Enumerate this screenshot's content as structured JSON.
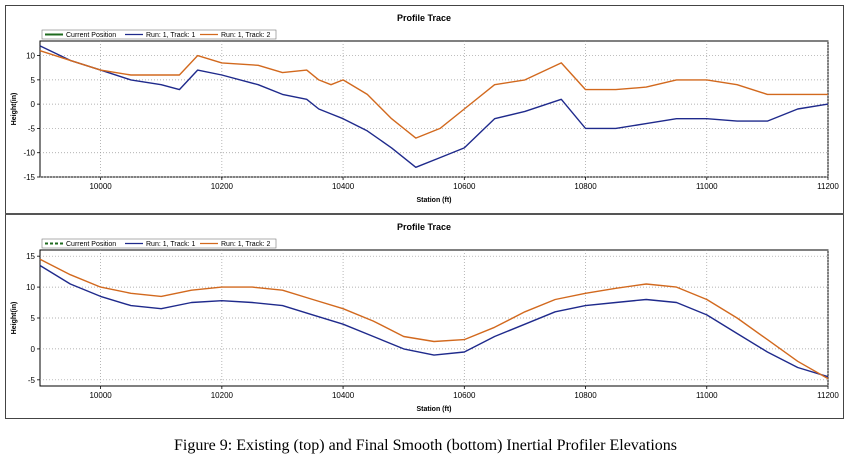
{
  "caption": "Figure 9: Existing (top) and Final Smooth (bottom) Inertial Profiler Elevations",
  "colors": {
    "current": "#1f6b1f",
    "track1": "#1f2a8c",
    "track2": "#d2691e"
  },
  "chart_data": [
    {
      "type": "line",
      "title": "Profile Trace",
      "xlabel": "Station (ft)",
      "ylabel": "Height(in)",
      "xlim": [
        9900,
        11200
      ],
      "ylim": [
        -15,
        13
      ],
      "xticks": [
        10000,
        10200,
        10400,
        10600,
        10800,
        11000,
        11200
      ],
      "yticks": [
        10,
        5,
        0,
        -5,
        -10,
        -15
      ],
      "grid": true,
      "legend": "top-left",
      "series": [
        {
          "name": "Current Position",
          "style": "solid",
          "x": [],
          "y": []
        },
        {
          "name": "Run: 1, Track: 1",
          "x": [
            9900,
            9950,
            10000,
            10050,
            10100,
            10130,
            10160,
            10200,
            10260,
            10300,
            10340,
            10360,
            10380,
            10400,
            10440,
            10480,
            10520,
            10560,
            10600,
            10650,
            10700,
            10760,
            10800,
            10850,
            10900,
            10950,
            11000,
            11050,
            11100,
            11150,
            11200
          ],
          "y": [
            12,
            9,
            7,
            5,
            4,
            3,
            7,
            6,
            4,
            2,
            1,
            -1,
            -2,
            -3,
            -5.5,
            -9,
            -13,
            -11,
            -9,
            -3,
            -1.5,
            1,
            -5,
            -5,
            -4,
            -3,
            -3,
            -3.5,
            -3.5,
            -1,
            0
          ]
        },
        {
          "name": "Run: 1, Track: 2",
          "x": [
            9900,
            9950,
            10000,
            10050,
            10100,
            10130,
            10160,
            10200,
            10260,
            10300,
            10340,
            10360,
            10380,
            10400,
            10440,
            10480,
            10520,
            10560,
            10600,
            10650,
            10700,
            10760,
            10800,
            10850,
            10900,
            10950,
            11000,
            11050,
            11100,
            11150,
            11200
          ],
          "y": [
            11,
            9,
            7,
            6,
            6,
            6,
            10,
            8.5,
            8,
            6.5,
            7,
            5,
            4,
            5,
            2,
            -3,
            -7,
            -5,
            -1,
            4,
            5,
            8.5,
            3,
            3,
            3.5,
            5,
            5,
            4,
            2,
            2,
            2
          ]
        }
      ]
    },
    {
      "type": "line",
      "title": "Profile Trace",
      "xlabel": "Station (ft)",
      "ylabel": "Height(in)",
      "xlim": [
        9900,
        11200
      ],
      "ylim": [
        -6,
        16
      ],
      "xticks": [
        10000,
        10200,
        10400,
        10600,
        10800,
        11000,
        11200
      ],
      "yticks": [
        15,
        10,
        5,
        0,
        -5
      ],
      "grid": true,
      "legend": "top-left",
      "series": [
        {
          "name": "Current Position",
          "style": "dashed",
          "x": [],
          "y": []
        },
        {
          "name": "Run: 1, Track: 1",
          "x": [
            9900,
            9950,
            10000,
            10050,
            10100,
            10150,
            10200,
            10250,
            10300,
            10350,
            10400,
            10450,
            10500,
            10550,
            10600,
            10650,
            10700,
            10750,
            10800,
            10850,
            10900,
            10950,
            11000,
            11050,
            11100,
            11150,
            11200
          ],
          "y": [
            13.5,
            10.5,
            8.5,
            7,
            6.5,
            7.5,
            7.8,
            7.5,
            7,
            5.5,
            4,
            2,
            0,
            -1,
            -0.5,
            2,
            4,
            6,
            7,
            7.5,
            8,
            7.5,
            5.5,
            2.5,
            -0.5,
            -3,
            -4.5
          ]
        },
        {
          "name": "Run: 1, Track: 2",
          "x": [
            9900,
            9950,
            10000,
            10050,
            10100,
            10150,
            10200,
            10250,
            10300,
            10350,
            10400,
            10450,
            10500,
            10550,
            10600,
            10650,
            10700,
            10750,
            10800,
            10850,
            10900,
            10950,
            11000,
            11050,
            11100,
            11150,
            11200
          ],
          "y": [
            14.5,
            12,
            10,
            9,
            8.5,
            9.5,
            10,
            10,
            9.5,
            8,
            6.5,
            4.5,
            2,
            1.2,
            1.5,
            3.5,
            6,
            8,
            9,
            9.8,
            10.5,
            10,
            8,
            5,
            1.5,
            -2,
            -4.8
          ]
        }
      ]
    }
  ]
}
